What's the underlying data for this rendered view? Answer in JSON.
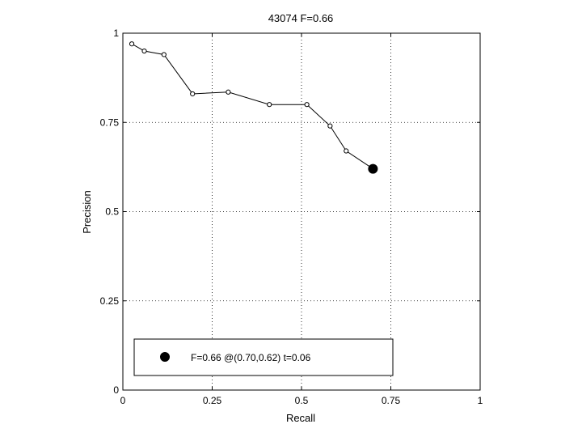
{
  "chart_data": {
    "type": "line",
    "title": "43074 F=0.66",
    "xlabel": "Recall",
    "ylabel": "Precision",
    "xlim": [
      0,
      1
    ],
    "ylim": [
      0,
      1
    ],
    "xticks": [
      0,
      0.25,
      0.5,
      0.75,
      1
    ],
    "yticks": [
      0,
      0.25,
      0.5,
      0.75,
      1
    ],
    "xtick_labels": [
      "0",
      "0.25",
      "0.5",
      "0.75",
      "1"
    ],
    "ytick_labels": [
      "0",
      "0.25",
      "0.5",
      "0.75",
      "1"
    ],
    "grid": true,
    "series": [
      {
        "x": [
          0.025,
          0.06,
          0.115,
          0.195,
          0.295,
          0.41,
          0.515,
          0.58,
          0.625,
          0.7
        ],
        "y": [
          0.97,
          0.95,
          0.94,
          0.83,
          0.835,
          0.8,
          0.8,
          0.74,
          0.67,
          0.62
        ]
      }
    ],
    "best_point": {
      "x": 0.7,
      "y": 0.62
    },
    "legend": {
      "placement": "bottom",
      "entries": [
        {
          "label": "F=0.66 @(0.70,0.62) t=0.06",
          "marker": "filled-circle"
        }
      ]
    }
  }
}
